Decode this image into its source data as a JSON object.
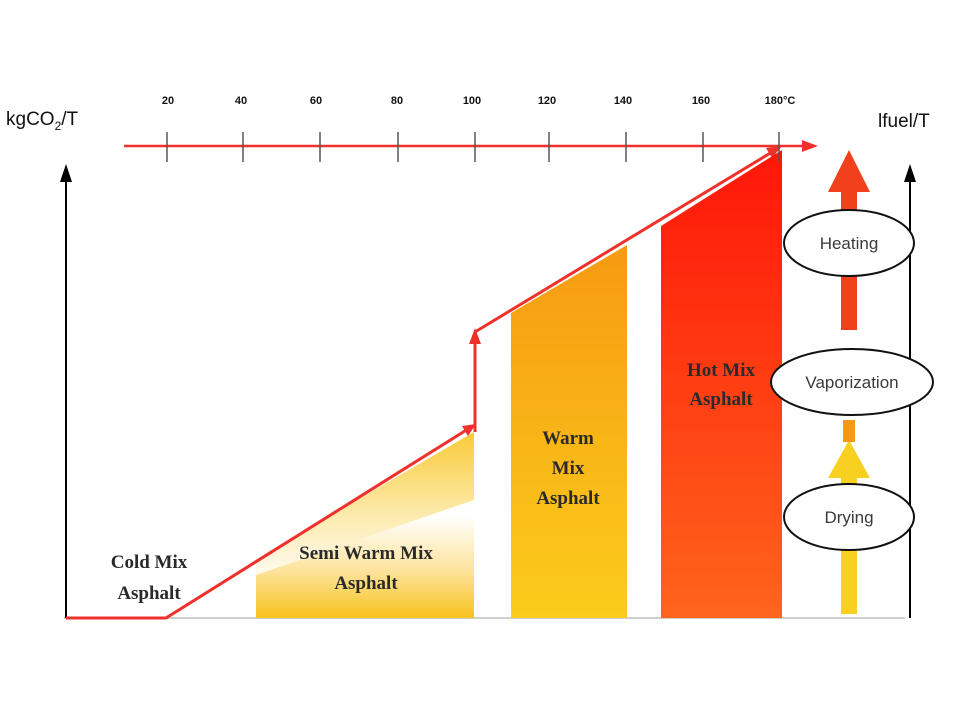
{
  "axes": {
    "left_label_main": "kgCO",
    "left_label_sub": "2",
    "left_label_tail": "/T",
    "right_label": "lfuel/T",
    "top_ticks": [
      "20",
      "40",
      "60",
      "80",
      "100",
      "120",
      "140",
      "160",
      "180°C"
    ]
  },
  "regions": {
    "cold_line1": "Cold Mix",
    "cold_line2": "Asphalt",
    "semi_line1": "Semi Warm Mix",
    "semi_line2": "Asphalt",
    "warm_line1": "Warm",
    "warm_line2": "Mix",
    "warm_line3": "Asphalt",
    "hot_line1": "Hot Mix",
    "hot_line2": "Asphalt"
  },
  "stages": {
    "heating": "Heating",
    "vaporization": "Vaporization",
    "drying": "Drying"
  },
  "colors": {
    "red_line": "#f0302a",
    "semi_fill": "#f8c21c",
    "warm_fill": "#f7a914",
    "hot_fill_top": "#ff1a0a",
    "hot_fill_bottom": "#ff5a1a",
    "yellow_arrow": "#f8d020",
    "red_arrow": "#f0401c"
  }
}
